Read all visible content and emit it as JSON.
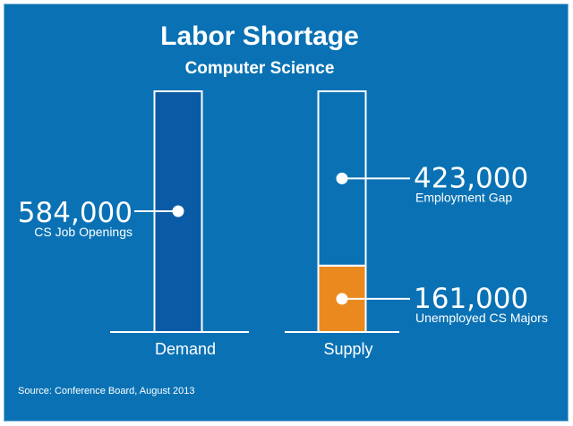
{
  "colors": {
    "background": "#0a72b4",
    "demand_fill": "#0b5aa6",
    "unemployed_fill": "#ea8a1e",
    "outline": "#ffffff",
    "text": "#ffffff"
  },
  "chart_data": {
    "type": "bar",
    "title": "Labor Shortage",
    "subtitle": "Computer Science",
    "source": "Source: Conference Board, August 2013",
    "categories": [
      "Demand",
      "Supply"
    ],
    "ylim": [
      0,
      584000
    ],
    "grid": false,
    "bars": [
      {
        "category": "Demand",
        "segments": [
          {
            "value": 584000,
            "value_label": "584,000",
            "label": "CS Job Openings",
            "filled": true,
            "color": "#0b5aa6"
          }
        ]
      },
      {
        "category": "Supply",
        "segments": [
          {
            "value": 161000,
            "value_label": "161,000",
            "label": "Unemployed CS Majors",
            "filled": true,
            "color": "#ea8a1e"
          },
          {
            "value": 423000,
            "value_label": "423,000",
            "label": "Employment Gap",
            "filled": false,
            "color": "#0a72b4"
          }
        ]
      }
    ]
  }
}
